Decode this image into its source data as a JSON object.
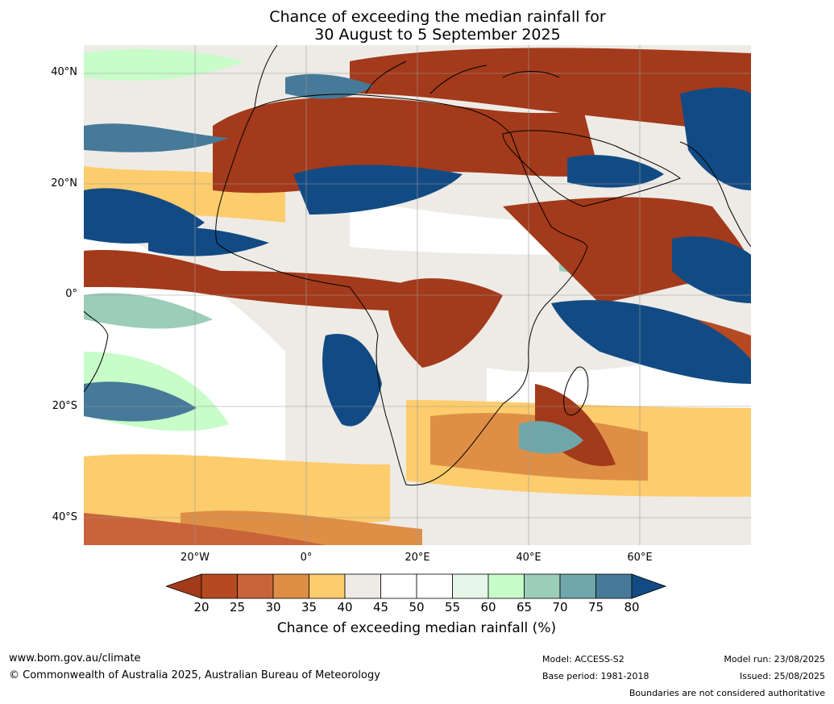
{
  "title": {
    "line1": "Chance of exceeding the median rainfall for",
    "line2": "30 August to 5 September 2025"
  },
  "map": {
    "lat_labels": [
      "40°N",
      "20°N",
      "0°",
      "20°S",
      "40°S"
    ],
    "lon_labels": [
      "20°W",
      "0°",
      "20°E",
      "40°E",
      "60°E"
    ],
    "lat_range": [
      -45,
      45
    ],
    "lon_range": [
      -40,
      80
    ],
    "region": "Africa, Middle East and adjacent oceans"
  },
  "colorbar": {
    "ticks": [
      "20",
      "25",
      "30",
      "35",
      "40",
      "45",
      "50",
      "55",
      "60",
      "65",
      "70",
      "75",
      "80"
    ],
    "colors": [
      "#a33a1b",
      "#b54a22",
      "#c9643a",
      "#de8f45",
      "#fdcc6d",
      "#eeebe6",
      "#ffffff",
      "#ffffff",
      "#e6f6e8",
      "#c8fcc9",
      "#9ccdb8",
      "#6fa6a9",
      "#467a98",
      "#124b84"
    ],
    "label": "Chance of exceeding median rainfall (%)"
  },
  "footer": {
    "website": "www.bom.gov.au/climate",
    "copyright": "© Commonwealth of Australia 2025, Australian Bureau of Meteorology",
    "model": "Model: ACCESS-S2",
    "base_period": "Base period: 1981-2018",
    "model_run": "Model run: 23/08/2025",
    "issued": "Issued: 25/08/2025",
    "disclaimer": "Boundaries are not considered authoritative"
  }
}
